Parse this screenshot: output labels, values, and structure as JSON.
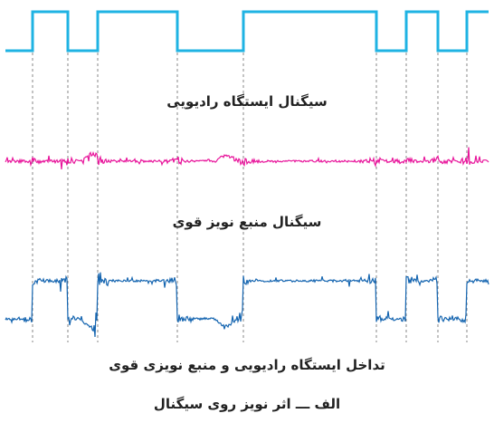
{
  "labels": {
    "radio_signal": "سیگنال ایستگاه رادیویی",
    "noise_signal": "سیگنال منبع نویز قوی",
    "interference": "تداخل ایستگاه رادیویی و منبع نویزی قوی",
    "figure_caption": "الف ـــ اثر نویز روی سیگنال"
  },
  "colors": {
    "square": "#1fb3e3",
    "pink": "#e8159b",
    "blue": "#1565b0",
    "guide": "#555555"
  }
}
